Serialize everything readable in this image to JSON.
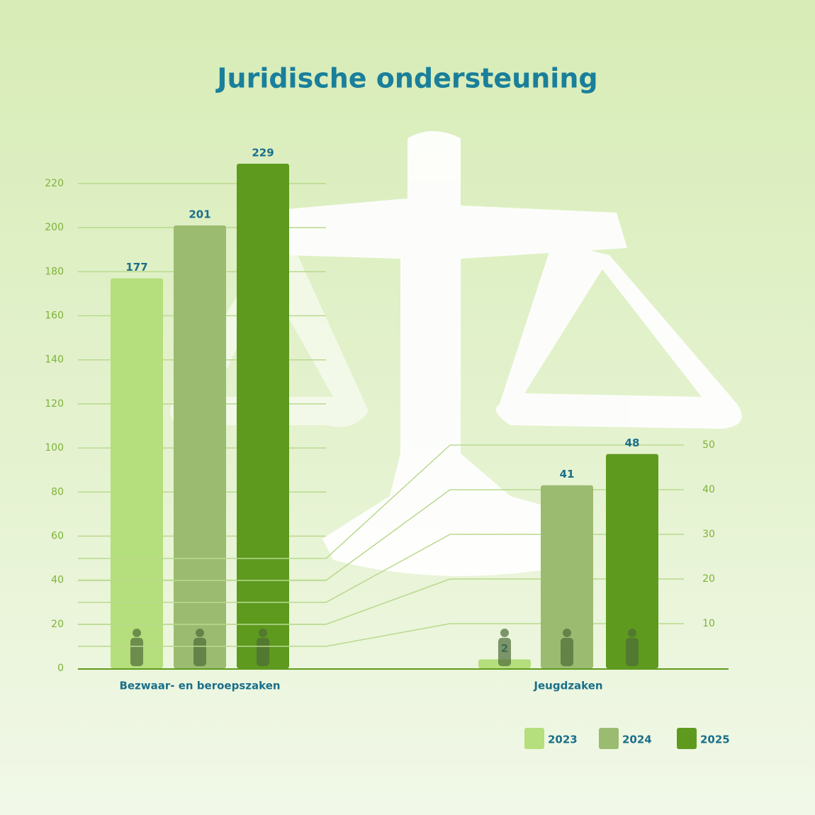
{
  "chart_data": [
    {
      "type": "bar",
      "title": "Juridische ondersteuning",
      "categories": [
        "Bezwaar- en beroepszaken"
      ],
      "series": [
        {
          "name": "2023",
          "color": "#b5de7c",
          "values": [
            177
          ]
        },
        {
          "name": "2024",
          "color": "#9bbb70",
          "values": [
            201
          ]
        },
        {
          "name": "2025",
          "color": "#5e9a1e",
          "values": [
            229
          ]
        }
      ],
      "ylim": [
        0,
        230
      ],
      "yticks": [
        0,
        20,
        40,
        60,
        80,
        100,
        120,
        140,
        160,
        180,
        200,
        220
      ],
      "grid": true
    },
    {
      "type": "bar",
      "categories": [
        "Jeugdzaken"
      ],
      "series": [
        {
          "color": "#b5de7c",
          "values": [
            2
          ]
        },
        {
          "color": "#9bbb70",
          "values": [
            41
          ]
        },
        {
          "color": "#5e9a1e",
          "values": [
            48
          ]
        }
      ],
      "ylim": [
        0,
        50
      ],
      "yticks": [
        10,
        20,
        30,
        40,
        50
      ],
      "grid": true
    }
  ]
}
